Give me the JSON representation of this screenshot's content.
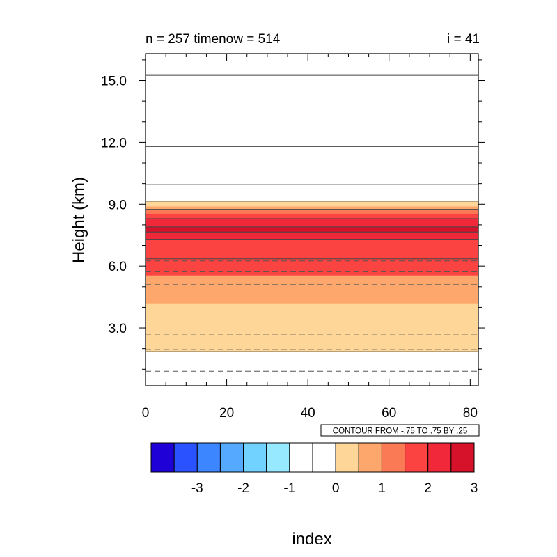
{
  "chart_data": {
    "type": "heatmap",
    "title_left": "n = 257 timenow = 514",
    "title_right": "i = 41",
    "xlabel": "index",
    "ylabel": "Height (km)",
    "xlim": [
      0,
      82
    ],
    "ylim": [
      0.2,
      16.3
    ],
    "x_ticks": [
      {
        "value": 0,
        "label": "0"
      },
      {
        "value": 20,
        "label": "20"
      },
      {
        "value": 40,
        "label": "40"
      },
      {
        "value": 60,
        "label": "60"
      },
      {
        "value": 80,
        "label": "80"
      }
    ],
    "y_ticks": [
      {
        "value": 3,
        "label": "3.0"
      },
      {
        "value": 6,
        "label": "6.0"
      },
      {
        "value": 9,
        "label": "9.0"
      },
      {
        "value": 12,
        "label": "12.0"
      },
      {
        "value": 15,
        "label": "15.0"
      }
    ],
    "fill_layers": [
      {
        "from": 1.85,
        "to": 4.2,
        "level": 1
      },
      {
        "from": 4.2,
        "to": 5.55,
        "level": 1.5
      },
      {
        "from": 5.55,
        "to": 6.35,
        "level": 2.5
      },
      {
        "from": 6.35,
        "to": 7.3,
        "level": 2.5
      },
      {
        "from": 7.3,
        "to": 7.65,
        "level": 3
      },
      {
        "from": 7.65,
        "to": 7.9,
        "level": 3.5
      },
      {
        "from": 7.9,
        "to": 8.3,
        "level": 3
      },
      {
        "from": 8.3,
        "to": 8.55,
        "level": 2.5
      },
      {
        "from": 8.55,
        "to": 8.75,
        "level": 2
      },
      {
        "from": 8.75,
        "to": 8.9,
        "level": 1.5
      },
      {
        "from": 8.9,
        "to": 9.15,
        "level": 1
      }
    ],
    "contours_solid": [
      1.85,
      6.35,
      7.3,
      7.65,
      7.9,
      8.3,
      8.75,
      9.15,
      9.95,
      11.8,
      15.25
    ],
    "contours_dashed": [
      0.9,
      1.95,
      2.7,
      5.1,
      5.75,
      6.25
    ],
    "info_label": "CONTOUR FROM -.75 TO .75 BY .25",
    "colorbar": {
      "colors": [
        "#1f00d6",
        "#2a52ff",
        "#3c86ff",
        "#55aaff",
        "#72d2ff",
        "#97e9ff",
        "#ffffff",
        "#ffffff",
        "#fdd698",
        "#fda76c",
        "#fb7a56",
        "#fb4341",
        "#f0283a",
        "#d6122a"
      ],
      "labels": [
        {
          "index": 1,
          "label": "-3"
        },
        {
          "index": 3,
          "label": "-2"
        },
        {
          "index": 5,
          "label": "-1"
        },
        {
          "index": 7,
          "label": "0"
        },
        {
          "index": 9,
          "label": "1"
        },
        {
          "index": 11,
          "label": "2"
        },
        {
          "index": 13,
          "label": "3"
        }
      ]
    },
    "level_colors": {
      "1": "#fdd698",
      "1.5": "#fda76c",
      "2": "#fb7a56",
      "2.5": "#fb4341",
      "3": "#f0283a",
      "3.5": "#d6122a"
    }
  }
}
